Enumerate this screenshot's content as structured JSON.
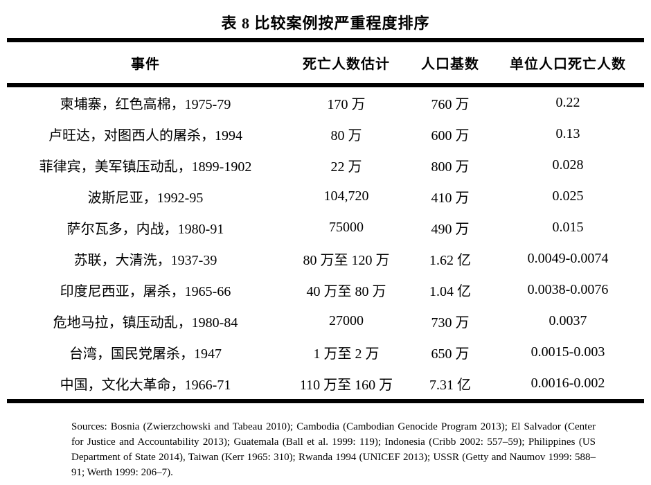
{
  "title": "表 8 比较案例按严重程度排序",
  "table": {
    "columns": [
      "事件",
      "死亡人数估计",
      "人口基数",
      "单位人口死亡人数"
    ],
    "rows": [
      {
        "event": "柬埔寨，红色高棉，1975-79",
        "deaths": "170 万",
        "population": "760 万",
        "per_capita": "0.22"
      },
      {
        "event": "卢旺达，对图西人的屠杀，1994",
        "deaths": "80 万",
        "population": "600 万",
        "per_capita": "0.13"
      },
      {
        "event": "菲律宾，美军镇压动乱，1899-1902",
        "deaths": "22 万",
        "population": "800 万",
        "per_capita": "0.028"
      },
      {
        "event": "波斯尼亚，1992-95",
        "deaths": "104,720",
        "population": "410 万",
        "per_capita": "0.025"
      },
      {
        "event": "萨尔瓦多，内战，1980-91",
        "deaths": "75000",
        "population": "490 万",
        "per_capita": "0.015"
      },
      {
        "event": "苏联，大清洗，1937-39",
        "deaths": "80 万至 120 万",
        "population": "1.62 亿",
        "per_capita": "0.0049-0.0074"
      },
      {
        "event": "印度尼西亚，屠杀，1965-66",
        "deaths": "40 万至 80 万",
        "population": "1.04 亿",
        "per_capita": "0.0038-0.0076"
      },
      {
        "event": "危地马拉，镇压动乱，1980-84",
        "deaths": "27000",
        "population": "730 万",
        "per_capita": "0.0037"
      },
      {
        "event": "台湾，国民党屠杀，1947",
        "deaths": "1 万至 2 万",
        "population": "650 万",
        "per_capita": "0.0015-0.003"
      },
      {
        "event": "中国，文化大革命，1966-71",
        "deaths": "110 万至 160 万",
        "population": "7.31 亿",
        "per_capita": "0.0016-0.002"
      }
    ]
  },
  "sources": "Sources: Bosnia (Zwierzchowski and Tabeau 2010); Cambodia (Cambodian Genocide Program 2013); El Salvador (Center for Justice and Accountability 2013); Guatemala (Ball et al. 1999: 119); Indonesia (Cribb 2002: 557–59); Philippines (US Department of State 2014), Taiwan (Kerr 1965: 310); Rwanda 1994 (UNICEF 2013); USSR (Getty and Naumov 1999: 588–91; Werth 1999: 206–7)."
}
